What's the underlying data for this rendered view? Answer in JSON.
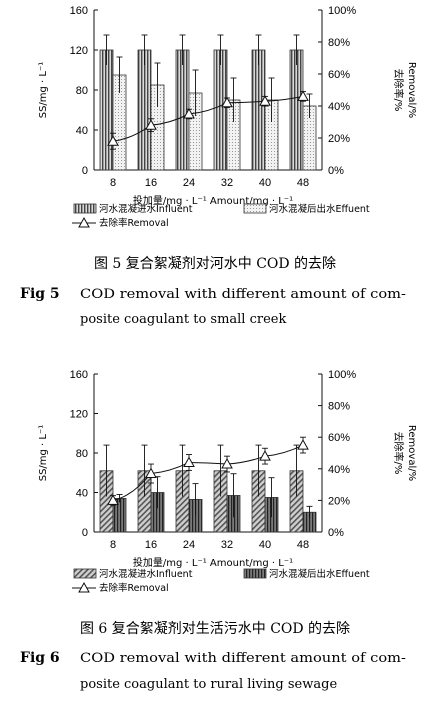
{
  "chart_data": [
    {
      "type": "bar",
      "categories": [
        "8",
        "16",
        "24",
        "32",
        "40",
        "48"
      ],
      "series": [
        {
          "name": "河水混凝进水Influent",
          "kind": "bar",
          "pattern": "vertical-lines",
          "values": [
            120,
            120,
            120,
            120,
            120,
            120
          ],
          "err": [
            15,
            15,
            15,
            15,
            15,
            15
          ]
        },
        {
          "name": "河水混凝后出水Effuent",
          "kind": "bar",
          "pattern": "light-dots",
          "values": [
            95,
            85,
            77,
            70,
            70,
            64
          ],
          "err": [
            18,
            22,
            23,
            22,
            22,
            12
          ]
        },
        {
          "name": "去除率Removal",
          "kind": "line",
          "marker": "triangle",
          "values": [
            18,
            28,
            35,
            42,
            43,
            46
          ],
          "err": [
            5,
            4,
            3,
            3,
            3,
            3
          ]
        }
      ],
      "ylim": [
        0,
        160
      ],
      "yticks": [
        "0",
        "40",
        "80",
        "120",
        "160"
      ],
      "y2lim": [
        0,
        100
      ],
      "y2ticks": [
        "0%",
        "20%",
        "40%",
        "60%",
        "80%",
        "100%"
      ],
      "xlabel": "投加量/mg · L⁻¹ Amount/mg · L⁻¹",
      "ylabel": "SS/mg · L⁻¹",
      "y2label_cn": "去除率/%",
      "y2label_en": "Removal/%",
      "caption_cn": "图 5   复合絮凝剂对河水中 COD 的去除",
      "caption_en_label": "Fig 5",
      "caption_en_line1": "COD removal with different amount of com-",
      "caption_en_line2": "posite coagulant to small creek"
    },
    {
      "type": "bar",
      "categories": [
        "8",
        "16",
        "24",
        "32",
        "40",
        "48"
      ],
      "series": [
        {
          "name": "河水混凝进水Influent",
          "kind": "bar",
          "pattern": "diagonal-lines",
          "values": [
            62,
            62,
            62,
            62,
            62,
            62
          ],
          "err": [
            26,
            26,
            26,
            26,
            26,
            26
          ]
        },
        {
          "name": "河水混凝后出水Effuent",
          "kind": "bar",
          "pattern": "dark-vertical-lines",
          "values": [
            34,
            40,
            33,
            37,
            35,
            20
          ],
          "err": [
            4,
            16,
            16,
            22,
            20,
            6
          ]
        },
        {
          "name": "去除率Removal",
          "kind": "line",
          "marker": "triangle",
          "values": [
            20,
            37,
            44,
            43,
            48,
            55
          ],
          "err": [
            3,
            6,
            5,
            5,
            5,
            5
          ]
        }
      ],
      "ylim": [
        0,
        160
      ],
      "yticks": [
        "0",
        "40",
        "80",
        "120",
        "160"
      ],
      "y2lim": [
        0,
        100
      ],
      "y2ticks": [
        "0%",
        "20%",
        "40%",
        "60%",
        "80%",
        "100%"
      ],
      "xlabel": "投加量/mg · L⁻¹ Amount/mg · L⁻¹",
      "ylabel": "SS/mg · L⁻¹",
      "y2label_cn": "去除率/%",
      "y2label_en": "Removal/%",
      "caption_cn": "图 6   复合絮凝剂对生活污水中 COD 的去除",
      "caption_en_label": "Fig 6",
      "caption_en_line1": "COD removal with different amount of com-",
      "caption_en_line2": "posite coagulant to rural living sewage"
    }
  ]
}
